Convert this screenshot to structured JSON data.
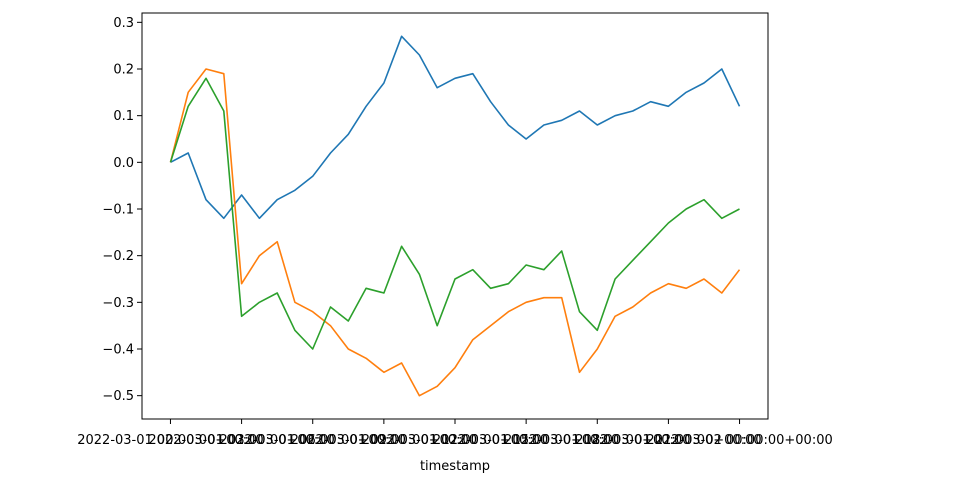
{
  "chart_data": {
    "type": "line",
    "title": "",
    "xlabel": "timestamp",
    "ylabel": "",
    "ylim": [
      -0.55,
      0.32
    ],
    "yticks": [
      -0.5,
      -0.4,
      -0.3,
      -0.2,
      -0.1,
      0.0,
      0.1,
      0.2,
      0.3
    ],
    "ytick_labels": [
      "−0.5",
      "−0.4",
      "−0.3",
      "−0.2",
      "−0.1",
      "0.0",
      "0.1",
      "0.2",
      "0.3"
    ],
    "xtick_labels": [
      "2022-03-01 00:00:00+00:00",
      "2022-03-01 03:00:00+00:00",
      "2022-03-01 06:00:00+00:00",
      "2022-03-01 09:00:00+00:00",
      "2022-03-01 12:00:00+00:00",
      "2022-03-01 15:00:00+00:00",
      "2022-03-01 18:00:00+00:00",
      "2022-03-01 21:00:00+00:00",
      "2022-03-02 00:00:00+00:00"
    ],
    "x": [
      0,
      0.25,
      0.5,
      0.75,
      1,
      1.25,
      1.5,
      1.75,
      2,
      2.25,
      2.5,
      2.75,
      3,
      3.25,
      3.5,
      3.75,
      4,
      4.25,
      4.5,
      4.75,
      5,
      5.25,
      5.5,
      5.75,
      6,
      6.25,
      6.5,
      6.75,
      7,
      7.25,
      7.5,
      7.75,
      8
    ],
    "series": [
      {
        "color": "#1f77b4",
        "values": [
          0.0,
          0.02,
          -0.08,
          -0.12,
          -0.07,
          -0.12,
          -0.08,
          -0.06,
          -0.03,
          0.02,
          0.06,
          0.12,
          0.17,
          0.27,
          0.23,
          0.16,
          0.18,
          0.19,
          0.13,
          0.08,
          0.05,
          0.08,
          0.09,
          0.11,
          0.08,
          0.1,
          0.11,
          0.13,
          0.12,
          0.15,
          0.17,
          0.2,
          0.12
        ]
      },
      {
        "color": "#ff7f0e",
        "values": [
          0.0,
          0.15,
          0.2,
          0.19,
          -0.26,
          -0.2,
          -0.17,
          -0.3,
          -0.32,
          -0.35,
          -0.4,
          -0.42,
          -0.45,
          -0.43,
          -0.5,
          -0.48,
          -0.44,
          -0.38,
          -0.35,
          -0.32,
          -0.3,
          -0.29,
          -0.29,
          -0.45,
          -0.4,
          -0.33,
          -0.31,
          -0.28,
          -0.26,
          -0.27,
          -0.25,
          -0.28,
          -0.23
        ]
      },
      {
        "color": "#2ca02c",
        "values": [
          0.0,
          0.12,
          0.18,
          0.11,
          -0.33,
          -0.3,
          -0.28,
          -0.36,
          -0.4,
          -0.31,
          -0.34,
          -0.27,
          -0.28,
          -0.18,
          -0.24,
          -0.35,
          -0.25,
          -0.23,
          -0.27,
          -0.26,
          -0.22,
          -0.23,
          -0.19,
          -0.32,
          -0.36,
          -0.25,
          -0.21,
          -0.17,
          -0.13,
          -0.1,
          -0.08,
          -0.12,
          -0.1
        ]
      }
    ],
    "grid": false,
    "legend": "none"
  }
}
